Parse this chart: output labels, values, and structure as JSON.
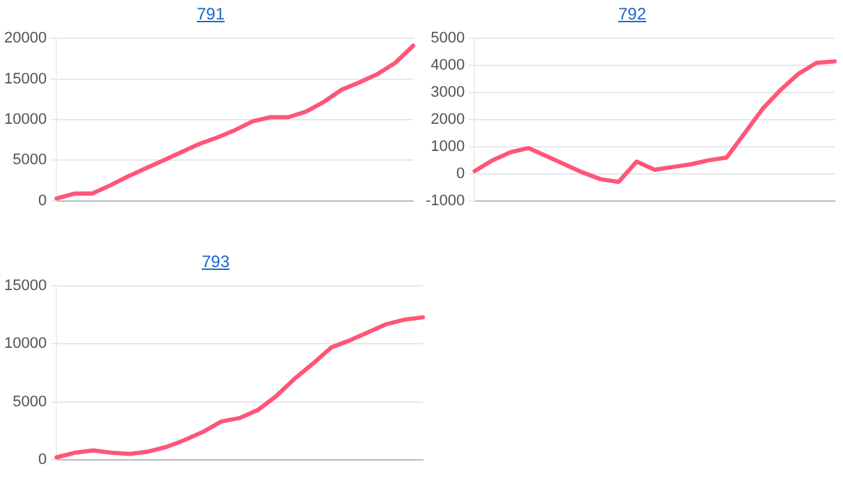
{
  "chart_data": [
    {
      "type": "line",
      "title": "791",
      "categories": [
        null,
        null,
        null,
        null,
        null,
        null,
        null,
        null,
        null,
        null,
        null,
        null,
        null,
        null,
        null,
        null,
        null,
        null,
        null,
        null,
        null
      ],
      "series": [
        {
          "color": "#ff5577",
          "values": [
            300,
            900,
            900,
            1900,
            3000,
            4000,
            5000,
            6000,
            7000,
            7800,
            8700,
            9800,
            10300,
            10300,
            11000,
            12200,
            13700,
            14600,
            15600,
            17000,
            19100
          ]
        }
      ],
      "ylim": [
        0,
        20000
      ],
      "yticks": [
        0,
        5000,
        10000,
        15000,
        20000
      ],
      "grid": "y",
      "tick_labels": "y",
      "marker": "none",
      "line_style": "solid",
      "legend": false
    },
    {
      "type": "line",
      "title": "792",
      "categories": [
        null,
        null,
        null,
        null,
        null,
        null,
        null,
        null,
        null,
        null,
        null,
        null,
        null,
        null,
        null,
        null,
        null,
        null,
        null,
        null,
        null
      ],
      "series": [
        {
          "color": "#ff5577",
          "values": [
            100,
            500,
            800,
            950,
            650,
            350,
            50,
            -200,
            -300,
            450,
            150,
            250,
            350,
            500,
            600,
            1500,
            2400,
            3100,
            3700,
            4100,
            4150
          ]
        }
      ],
      "ylim": [
        -1000,
        5000
      ],
      "yticks": [
        -1000,
        0,
        1000,
        2000,
        3000,
        4000,
        5000
      ],
      "grid": "y",
      "tick_labels": "y",
      "marker": "none",
      "line_style": "solid",
      "legend": false
    },
    {
      "type": "line",
      "title": "793",
      "categories": [
        null,
        null,
        null,
        null,
        null,
        null,
        null,
        null,
        null,
        null,
        null,
        null,
        null,
        null,
        null,
        null,
        null,
        null,
        null,
        null,
        null
      ],
      "series": [
        {
          "color": "#ff5577",
          "values": [
            200,
            600,
            800,
            600,
            500,
            700,
            1100,
            1700,
            2400,
            3300,
            3600,
            4300,
            5500,
            7000,
            8300,
            9700,
            10300,
            11000,
            11700,
            12100,
            12300
          ]
        }
      ],
      "ylim": [
        0,
        15000
      ],
      "yticks": [
        0,
        5000,
        10000,
        15000
      ],
      "grid": "y",
      "tick_labels": "y",
      "marker": "none",
      "line_style": "solid",
      "legend": false
    }
  ]
}
